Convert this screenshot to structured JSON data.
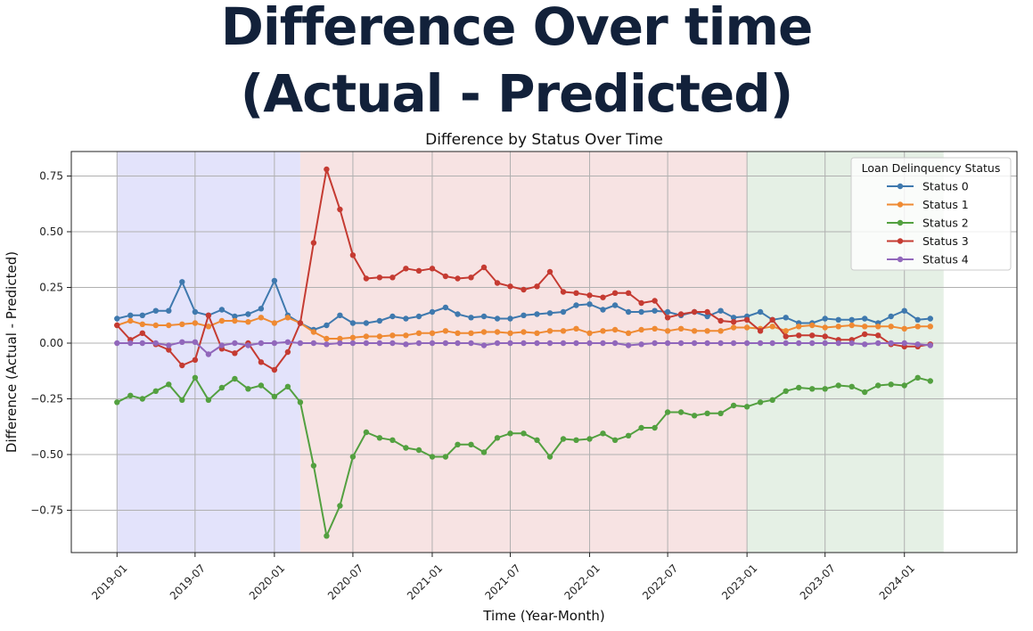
{
  "page": {
    "title_line1": "Difference Over time",
    "title_line2": "(Actual - Predicted)"
  },
  "chart_data": {
    "type": "line",
    "title": "Difference by Status Over Time",
    "xlabel": "Time (Year-Month)",
    "ylabel": "Difference (Actual - Predicted)",
    "ylim": [
      -0.94,
      0.86
    ],
    "xlim": [
      "2018-09-17",
      "2024-09-18"
    ],
    "grid": true,
    "yticks": [
      -0.75,
      -0.5,
      -0.25,
      0.0,
      0.25,
      0.5,
      0.75
    ],
    "ytick_labels": [
      "−0.75",
      "−0.50",
      "−0.25",
      "0.00",
      "0.25",
      "0.50",
      "0.75"
    ],
    "xticks": [
      "2019-01-01",
      "2019-07-01",
      "2020-01-01",
      "2020-07-01",
      "2021-01-01",
      "2021-07-01",
      "2022-01-01",
      "2022-07-01",
      "2023-01-01",
      "2023-07-01",
      "2024-01-01"
    ],
    "xtick_labels": [
      "2019-01",
      "2019-07",
      "2020-01",
      "2020-07",
      "2021-01",
      "2021-07",
      "2022-01",
      "2022-07",
      "2023-01",
      "2023-07",
      "2024-01"
    ],
    "shaded_regions": [
      {
        "start": "2019-01-01",
        "end": "2020-03-01",
        "color": "#e3e3fb"
      },
      {
        "start": "2020-03-01",
        "end": "2023-01-01",
        "color": "#f7e3e3"
      },
      {
        "start": "2023-01-01",
        "end": "2024-04-01",
        "color": "#e5f0e5"
      }
    ],
    "legend_title": "Loan Delinquency Status",
    "legend_position": "top-right",
    "start_month": "2019-01",
    "series": [
      {
        "name": "Status 0",
        "color": "#3f79ae",
        "values": [
          0.11,
          0.125,
          0.125,
          0.145,
          0.145,
          0.275,
          0.14,
          0.125,
          0.15,
          0.12,
          0.13,
          0.155,
          0.28,
          0.125,
          0.09,
          0.06,
          0.08,
          0.125,
          0.09,
          0.09,
          0.1,
          0.12,
          0.11,
          0.12,
          0.14,
          0.16,
          0.13,
          0.115,
          0.12,
          0.11,
          0.11,
          0.125,
          0.13,
          0.135,
          0.14,
          0.17,
          0.175,
          0.15,
          0.17,
          0.14,
          0.14,
          0.145,
          0.14,
          0.125,
          0.14,
          0.12,
          0.145,
          0.115,
          0.12,
          0.14,
          0.105,
          0.115,
          0.09,
          0.09,
          0.11,
          0.105,
          0.105,
          0.11,
          0.09,
          0.12,
          0.145,
          0.105,
          0.11
        ]
      },
      {
        "name": "Status 1",
        "color": "#ef8a33",
        "values": [
          0.08,
          0.1,
          0.085,
          0.08,
          0.08,
          0.085,
          0.09,
          0.075,
          0.1,
          0.1,
          0.095,
          0.115,
          0.09,
          0.115,
          0.09,
          0.05,
          0.02,
          0.02,
          0.025,
          0.03,
          0.03,
          0.035,
          0.035,
          0.045,
          0.045,
          0.055,
          0.045,
          0.045,
          0.05,
          0.05,
          0.045,
          0.05,
          0.045,
          0.055,
          0.055,
          0.065,
          0.045,
          0.055,
          0.06,
          0.045,
          0.06,
          0.065,
          0.055,
          0.065,
          0.055,
          0.055,
          0.055,
          0.07,
          0.07,
          0.065,
          0.075,
          0.055,
          0.075,
          0.08,
          0.07,
          0.075,
          0.08,
          0.075,
          0.075,
          0.075,
          0.065,
          0.075,
          0.075
        ]
      },
      {
        "name": "Status 2",
        "color": "#53a040",
        "values": [
          -0.265,
          -0.235,
          -0.25,
          -0.215,
          -0.185,
          -0.255,
          -0.155,
          -0.255,
          -0.2,
          -0.16,
          -0.205,
          -0.19,
          -0.24,
          -0.195,
          -0.265,
          -0.55,
          -0.865,
          -0.73,
          -0.51,
          -0.4,
          -0.425,
          -0.435,
          -0.47,
          -0.48,
          -0.51,
          -0.51,
          -0.455,
          -0.455,
          -0.49,
          -0.425,
          -0.405,
          -0.405,
          -0.435,
          -0.51,
          -0.43,
          -0.435,
          -0.43,
          -0.405,
          -0.435,
          -0.415,
          -0.38,
          -0.38,
          -0.31,
          -0.31,
          -0.325,
          -0.315,
          -0.315,
          -0.28,
          -0.285,
          -0.265,
          -0.255,
          -0.215,
          -0.2,
          -0.205,
          -0.205,
          -0.19,
          -0.195,
          -0.22,
          -0.19,
          -0.185,
          -0.19,
          -0.155,
          -0.17
        ]
      },
      {
        "name": "Status 3",
        "color": "#c53b32",
        "values": [
          0.08,
          0.015,
          0.045,
          -0.005,
          -0.03,
          -0.1,
          -0.075,
          0.125,
          -0.025,
          -0.045,
          0.0,
          -0.085,
          -0.12,
          -0.04,
          0.09,
          0.45,
          0.78,
          0.6,
          0.395,
          0.29,
          0.295,
          0.295,
          0.335,
          0.325,
          0.335,
          0.3,
          0.29,
          0.295,
          0.34,
          0.27,
          0.255,
          0.24,
          0.255,
          0.32,
          0.23,
          0.225,
          0.215,
          0.205,
          0.225,
          0.225,
          0.18,
          0.19,
          0.115,
          0.13,
          0.14,
          0.14,
          0.1,
          0.095,
          0.105,
          0.055,
          0.105,
          0.03,
          0.035,
          0.035,
          0.03,
          0.015,
          0.015,
          0.04,
          0.035,
          -0.005,
          -0.015,
          -0.015,
          -0.005
        ]
      },
      {
        "name": "Status 4",
        "color": "#9167bb",
        "values": [
          0.0,
          0.0,
          0.0,
          0.0,
          -0.01,
          0.005,
          0.005,
          -0.05,
          -0.01,
          0.0,
          -0.01,
          0.0,
          0.0,
          0.005,
          0.0,
          0.0,
          -0.005,
          0.0,
          0.0,
          0.0,
          0.0,
          0.0,
          -0.005,
          0.0,
          0.0,
          0.0,
          0.0,
          0.0,
          -0.01,
          0.0,
          0.0,
          0.0,
          0.0,
          0.0,
          0.0,
          0.0,
          0.0,
          0.0,
          0.0,
          -0.01,
          -0.005,
          0.0,
          0.0,
          0.0,
          0.0,
          0.0,
          0.0,
          0.0,
          0.0,
          0.0,
          0.0,
          0.0,
          0.0,
          0.0,
          0.0,
          0.0,
          0.0,
          -0.005,
          0.0,
          0.0,
          0.0,
          -0.005,
          -0.01
        ]
      }
    ]
  }
}
